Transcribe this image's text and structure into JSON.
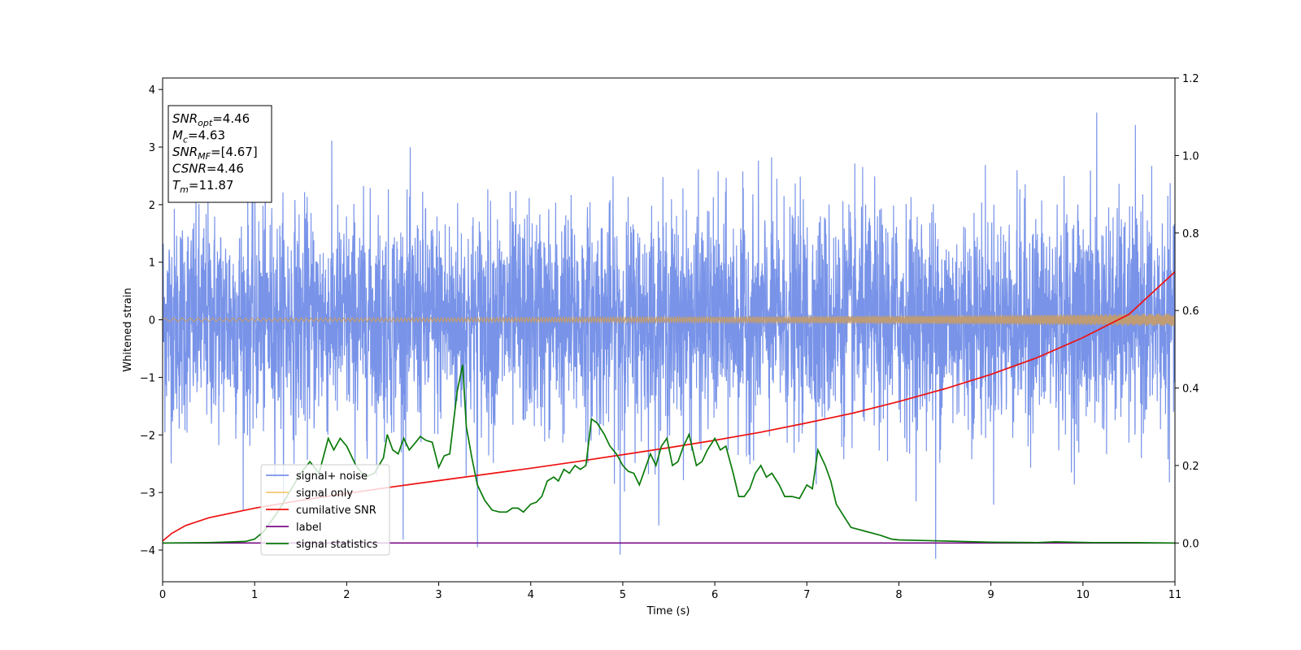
{
  "chart_data": {
    "type": "line",
    "xlabel": "Time (s)",
    "ylabel": "Whitened strain",
    "xlim": [
      0,
      11
    ],
    "ylim": [
      -4.55,
      4.2
    ],
    "y2lim": [
      -0.1,
      1.2
    ],
    "x_ticks": [
      0,
      1,
      2,
      3,
      4,
      5,
      6,
      7,
      8,
      9,
      10,
      11
    ],
    "y_ticks": [
      -4,
      -3,
      -2,
      -1,
      0,
      1,
      2,
      3,
      4
    ],
    "y2_ticks": [
      0.0,
      0.2,
      0.4,
      0.6,
      0.8,
      1.0,
      1.2
    ],
    "legend_position": "lower-left",
    "grid": false,
    "info_box": {
      "lines": [
        {
          "base": "SNR",
          "sub": "opt",
          "rest": "=4.46"
        },
        {
          "base": "M",
          "sub": "c",
          "rest": "=4.63"
        },
        {
          "base": "SNR",
          "sub": "MF",
          "rest": "=[4.67]"
        },
        {
          "base": "CSNR",
          "sub": "",
          "rest": "=4.46"
        },
        {
          "base": "T",
          "sub": "m",
          "rest": "=11.87"
        }
      ]
    },
    "series": [
      {
        "name": "signal+ noise",
        "color": "#7893e8",
        "axis": "left",
        "kind": "noise",
        "rms": 0.95,
        "notable_spikes": [
          {
            "x": 3.42,
            "y": 3.82
          },
          {
            "x": 8.4,
            "y": -4.15
          },
          {
            "x": 4.97,
            "y": -4.08
          },
          {
            "x": 10.15,
            "y": 3.6
          },
          {
            "x": 3.42,
            "y": -3.95
          }
        ]
      },
      {
        "name": "signal only",
        "color": "#f7c873",
        "axis": "left",
        "kind": "chirp",
        "start_amplitude": 0.03,
        "end_amplitude": 0.11
      },
      {
        "name": "cumilative SNR",
        "color": "#ee1111",
        "axis": "right",
        "x": [
          0,
          0.1,
          0.25,
          0.5,
          1,
          1.5,
          2,
          2.5,
          3,
          3.5,
          4,
          4.5,
          5,
          5.5,
          6,
          6.5,
          7,
          7.5,
          8,
          8.5,
          9,
          9.5,
          10,
          10.5,
          11
        ],
        "values": [
          0.005,
          0.025,
          0.045,
          0.065,
          0.09,
          0.11,
          0.128,
          0.145,
          0.161,
          0.177,
          0.193,
          0.21,
          0.228,
          0.246,
          0.265,
          0.286,
          0.31,
          0.335,
          0.365,
          0.398,
          0.435,
          0.478,
          0.53,
          0.59,
          0.7
        ]
      },
      {
        "name": "label",
        "color": "#7b0e87",
        "axis": "right",
        "x": [
          0,
          11
        ],
        "values": [
          0.0,
          0.0
        ]
      },
      {
        "name": "signal statistics",
        "color": "#0a7a0a",
        "axis": "right",
        "x": [
          0,
          0.5,
          0.9,
          1.0,
          1.1,
          1.25,
          1.4,
          1.5,
          1.6,
          1.7,
          1.8,
          1.86,
          1.93,
          2.0,
          2.1,
          2.2,
          2.3,
          2.4,
          2.44,
          2.5,
          2.56,
          2.62,
          2.68,
          2.75,
          2.8,
          2.86,
          2.93,
          3.0,
          3.06,
          3.12,
          3.2,
          3.26,
          3.3,
          3.36,
          3.42,
          3.5,
          3.58,
          3.66,
          3.74,
          3.8,
          3.86,
          3.92,
          4.0,
          4.06,
          4.12,
          4.18,
          4.25,
          4.3,
          4.36,
          4.42,
          4.48,
          4.54,
          4.6,
          4.66,
          4.72,
          4.8,
          4.86,
          4.93,
          5.0,
          5.06,
          5.12,
          5.18,
          5.24,
          5.3,
          5.36,
          5.42,
          5.48,
          5.54,
          5.6,
          5.66,
          5.72,
          5.8,
          5.86,
          5.92,
          6.0,
          6.06,
          6.12,
          6.2,
          6.26,
          6.32,
          6.38,
          6.44,
          6.5,
          6.56,
          6.62,
          6.7,
          6.76,
          6.84,
          6.92,
          7.0,
          7.06,
          7.12,
          7.2,
          7.26,
          7.32,
          7.4,
          7.48,
          7.56,
          7.64,
          7.72,
          7.8,
          7.86,
          7.92,
          8.0,
          8.5,
          9.0,
          9.5,
          9.7,
          9.9,
          10.1,
          10.5,
          11.0
        ],
        "values": [
          0.0,
          0.001,
          0.004,
          0.01,
          0.03,
          0.08,
          0.14,
          0.18,
          0.21,
          0.18,
          0.27,
          0.24,
          0.27,
          0.25,
          0.2,
          0.17,
          0.18,
          0.22,
          0.28,
          0.24,
          0.23,
          0.27,
          0.24,
          0.26,
          0.275,
          0.265,
          0.26,
          0.195,
          0.225,
          0.23,
          0.39,
          0.46,
          0.3,
          0.22,
          0.15,
          0.11,
          0.085,
          0.08,
          0.08,
          0.09,
          0.09,
          0.08,
          0.1,
          0.105,
          0.12,
          0.16,
          0.17,
          0.16,
          0.19,
          0.18,
          0.2,
          0.19,
          0.2,
          0.32,
          0.31,
          0.28,
          0.25,
          0.23,
          0.2,
          0.185,
          0.18,
          0.15,
          0.19,
          0.23,
          0.2,
          0.25,
          0.27,
          0.2,
          0.21,
          0.25,
          0.28,
          0.2,
          0.21,
          0.24,
          0.27,
          0.24,
          0.25,
          0.18,
          0.12,
          0.12,
          0.14,
          0.18,
          0.2,
          0.17,
          0.18,
          0.15,
          0.12,
          0.12,
          0.115,
          0.15,
          0.14,
          0.24,
          0.2,
          0.16,
          0.1,
          0.07,
          0.04,
          0.035,
          0.03,
          0.025,
          0.02,
          0.015,
          0.01,
          0.008,
          0.005,
          0.002,
          0.001,
          0.003,
          0.002,
          0.001,
          0.001,
          0.0
        ]
      }
    ]
  }
}
